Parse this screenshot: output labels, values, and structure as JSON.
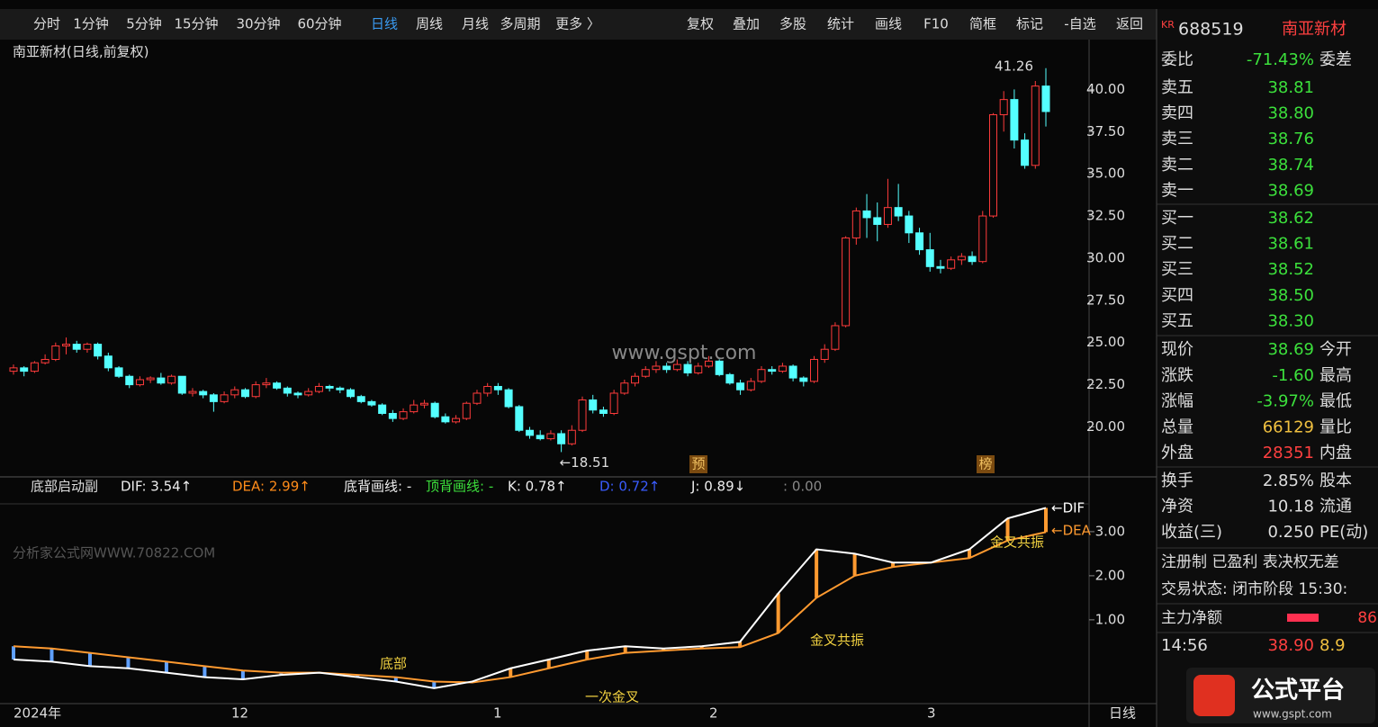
{
  "toolbar": {
    "left": [
      "分时",
      "1分钟",
      "5分钟",
      "15分钟",
      "30分钟",
      "60分钟",
      "日线",
      "周线",
      "月线",
      "多周期",
      "更多 〉"
    ],
    "right": [
      "复权",
      "叠加",
      "多股",
      "统计",
      "画线",
      "F10",
      "简框",
      "标记",
      "-自选",
      "返回"
    ]
  },
  "chart": {
    "type": "candlestick",
    "title": "南亚新材(日线,前复权)",
    "candles": [
      [
        23.3,
        23.7,
        23.1,
        23.5
      ],
      [
        23.5,
        23.6,
        23.0,
        23.3
      ],
      [
        23.3,
        23.9,
        23.2,
        23.8
      ],
      [
        23.8,
        24.3,
        23.7,
        24.0
      ],
      [
        24.0,
        25.0,
        23.9,
        24.8
      ],
      [
        24.8,
        25.3,
        24.3,
        24.9
      ],
      [
        24.9,
        25.1,
        24.4,
        24.6
      ],
      [
        24.6,
        25.0,
        24.4,
        24.9
      ],
      [
        24.9,
        25.0,
        24.0,
        24.2
      ],
      [
        24.2,
        24.4,
        23.3,
        23.5
      ],
      [
        23.5,
        23.6,
        22.9,
        23.0
      ],
      [
        23.0,
        23.1,
        22.3,
        22.5
      ],
      [
        22.5,
        23.0,
        22.4,
        22.8
      ],
      [
        22.8,
        23.0,
        22.6,
        22.9
      ],
      [
        22.9,
        23.2,
        22.5,
        22.6
      ],
      [
        22.6,
        23.1,
        22.5,
        23.0
      ],
      [
        23.0,
        23.0,
        21.9,
        22.0
      ],
      [
        22.0,
        22.3,
        21.8,
        22.1
      ],
      [
        22.1,
        22.2,
        21.7,
        21.9
      ],
      [
        21.9,
        22.0,
        20.9,
        21.5
      ],
      [
        21.5,
        22.1,
        21.4,
        21.9
      ],
      [
        21.9,
        22.4,
        21.7,
        22.2
      ],
      [
        22.2,
        22.3,
        21.7,
        21.8
      ],
      [
        21.8,
        22.7,
        21.7,
        22.5
      ],
      [
        22.5,
        22.9,
        22.3,
        22.6
      ],
      [
        22.6,
        22.7,
        22.2,
        22.3
      ],
      [
        22.3,
        22.4,
        21.8,
        22.0
      ],
      [
        22.0,
        22.1,
        21.7,
        21.9
      ],
      [
        21.9,
        22.3,
        21.8,
        22.1
      ],
      [
        22.1,
        22.6,
        22.0,
        22.4
      ],
      [
        22.4,
        22.5,
        22.1,
        22.3
      ],
      [
        22.3,
        22.4,
        22.0,
        22.2
      ],
      [
        22.2,
        22.3,
        21.7,
        21.8
      ],
      [
        21.8,
        21.9,
        21.4,
        21.5
      ],
      [
        21.5,
        21.6,
        21.2,
        21.3
      ],
      [
        21.3,
        21.4,
        20.7,
        20.8
      ],
      [
        20.8,
        21.0,
        20.3,
        20.5
      ],
      [
        20.5,
        21.1,
        20.4,
        20.9
      ],
      [
        20.9,
        21.6,
        20.8,
        21.3
      ],
      [
        21.3,
        21.6,
        21.1,
        21.4
      ],
      [
        21.4,
        21.5,
        20.5,
        20.6
      ],
      [
        20.6,
        20.8,
        20.2,
        20.3
      ],
      [
        20.3,
        20.7,
        20.2,
        20.5
      ],
      [
        20.5,
        21.5,
        20.4,
        21.4
      ],
      [
        21.4,
        22.2,
        21.3,
        22.0
      ],
      [
        22.0,
        22.6,
        21.8,
        22.4
      ],
      [
        22.4,
        22.6,
        21.9,
        22.2
      ],
      [
        22.2,
        22.3,
        21.1,
        21.2
      ],
      [
        21.2,
        21.3,
        19.7,
        19.8
      ],
      [
        19.8,
        20.0,
        19.3,
        19.5
      ],
      [
        19.5,
        19.8,
        19.2,
        19.3
      ],
      [
        19.3,
        19.8,
        19.2,
        19.6
      ],
      [
        19.6,
        19.8,
        18.51,
        19.0
      ],
      [
        19.0,
        20.1,
        18.9,
        19.8
      ],
      [
        19.8,
        21.8,
        19.7,
        21.6
      ],
      [
        21.6,
        21.9,
        20.8,
        21.0
      ],
      [
        21.0,
        21.2,
        20.6,
        20.8
      ],
      [
        20.8,
        22.2,
        20.7,
        22.0
      ],
      [
        22.0,
        22.8,
        21.9,
        22.6
      ],
      [
        22.6,
        23.2,
        22.4,
        23.0
      ],
      [
        23.0,
        23.6,
        22.9,
        23.4
      ],
      [
        23.4,
        23.9,
        23.2,
        23.6
      ],
      [
        23.6,
        23.8,
        23.2,
        23.4
      ],
      [
        23.4,
        24.0,
        23.3,
        23.7
      ],
      [
        23.7,
        23.9,
        23.0,
        23.2
      ],
      [
        23.2,
        23.8,
        23.1,
        23.6
      ],
      [
        23.6,
        24.2,
        23.5,
        23.9
      ],
      [
        23.9,
        24.0,
        23.0,
        23.1
      ],
      [
        23.1,
        23.2,
        22.5,
        22.6
      ],
      [
        22.6,
        22.8,
        21.9,
        22.2
      ],
      [
        22.2,
        22.9,
        22.1,
        22.7
      ],
      [
        22.7,
        23.6,
        22.6,
        23.4
      ],
      [
        23.4,
        23.6,
        23.1,
        23.3
      ],
      [
        23.3,
        23.8,
        23.2,
        23.6
      ],
      [
        23.6,
        23.7,
        22.7,
        22.9
      ],
      [
        22.9,
        23.0,
        22.4,
        22.7
      ],
      [
        22.7,
        24.2,
        22.6,
        24.0
      ],
      [
        24.0,
        24.9,
        23.8,
        24.6
      ],
      [
        24.6,
        26.2,
        24.5,
        26.0
      ],
      [
        26.0,
        31.3,
        25.9,
        31.2
      ],
      [
        31.2,
        33.0,
        30.8,
        32.8
      ],
      [
        32.8,
        33.8,
        31.2,
        32.4
      ],
      [
        32.4,
        33.3,
        31.0,
        32.0
      ],
      [
        32.0,
        34.7,
        31.8,
        33.0
      ],
      [
        33.0,
        34.4,
        32.2,
        32.5
      ],
      [
        32.5,
        32.8,
        30.9,
        31.5
      ],
      [
        31.5,
        31.8,
        30.2,
        30.5
      ],
      [
        30.5,
        31.5,
        29.2,
        29.5
      ],
      [
        29.5,
        29.9,
        29.1,
        29.4
      ],
      [
        29.4,
        30.1,
        29.3,
        29.9
      ],
      [
        29.9,
        30.3,
        29.6,
        30.1
      ],
      [
        30.1,
        30.4,
        29.6,
        29.8
      ],
      [
        29.8,
        32.8,
        29.7,
        32.5
      ],
      [
        32.5,
        38.6,
        32.4,
        38.5
      ],
      [
        38.5,
        39.9,
        37.5,
        39.4
      ],
      [
        39.4,
        40.0,
        36.5,
        37.0
      ],
      [
        37.0,
        37.4,
        35.3,
        35.5
      ],
      [
        35.5,
        40.5,
        35.3,
        40.2
      ],
      [
        40.2,
        41.26,
        37.8,
        38.69
      ]
    ],
    "ylim": [
      17.2,
      42.9
    ],
    "yticks": [
      {
        "value": 20,
        "label": "20.00"
      },
      {
        "value": 22.5,
        "label": "22.50"
      },
      {
        "value": 25,
        "label": "25.00"
      },
      {
        "value": 27.5,
        "label": "27.50"
      },
      {
        "value": 30,
        "label": "30.00"
      },
      {
        "value": 32.5,
        "label": "32.50"
      },
      {
        "value": 35,
        "label": "35.00"
      },
      {
        "value": 37.5,
        "label": "37.50"
      },
      {
        "value": 40,
        "label": "40.00"
      }
    ],
    "high_label": "41.26",
    "low_label": "←18.51",
    "markers": [
      "预",
      "榜"
    ],
    "watermark": "www.gspt.com",
    "xlabels": [
      "2024年",
      "12",
      "1",
      "2",
      "3"
    ],
    "period": "日线"
  },
  "indicator": {
    "name": "底部启动副",
    "legend": [
      "DIF: 3.54↑",
      "DEA: 2.99↑",
      "底背画线: -",
      "顶背画线: -",
      "K: 0.78↑",
      "D: 0.72↑",
      "J: 0.89↓",
      ": 0.00"
    ],
    "watermark": "分析家公式网WWW.70822.COM",
    "ylim": [
      -0.86,
      3.59
    ],
    "yticks": [
      {
        "value": 1,
        "label": "1.00"
      },
      {
        "value": 2,
        "label": "2.00"
      },
      {
        "value": 3,
        "label": "3.00"
      }
    ],
    "dif": [
      0.1,
      0.05,
      -0.05,
      -0.1,
      -0.2,
      -0.3,
      -0.35,
      -0.25,
      -0.2,
      -0.3,
      -0.4,
      -0.55,
      -0.4,
      -0.1,
      0.1,
      0.3,
      0.4,
      0.35,
      0.4,
      0.5,
      1.6,
      2.6,
      2.5,
      2.3,
      2.3,
      2.6,
      3.3,
      3.54
    ],
    "dea": [
      0.4,
      0.35,
      0.25,
      0.15,
      0.05,
      -0.05,
      -0.15,
      -0.2,
      -0.2,
      -0.25,
      -0.3,
      -0.4,
      -0.42,
      -0.3,
      -0.1,
      0.1,
      0.25,
      0.3,
      0.35,
      0.38,
      0.7,
      1.5,
      2.0,
      2.2,
      2.3,
      2.4,
      2.8,
      2.99
    ],
    "annotations": [
      "底部",
      "一次金叉",
      "金叉共振",
      "金叉共振"
    ],
    "line_labels": [
      "←DIF",
      "←DEA"
    ]
  },
  "quote": {
    "market": "KR",
    "code": "688519",
    "name": "南亚新材",
    "ratio": [
      "委比",
      "-71.43%",
      "委差"
    ],
    "asks": [
      [
        "卖五",
        "38.81"
      ],
      [
        "卖四",
        "38.80"
      ],
      [
        "卖三",
        "38.76"
      ],
      [
        "卖二",
        "38.74"
      ],
      [
        "卖一",
        "38.69"
      ]
    ],
    "bids": [
      [
        "买一",
        "38.62"
      ],
      [
        "买二",
        "38.61"
      ],
      [
        "买三",
        "38.52"
      ],
      [
        "买四",
        "38.50"
      ],
      [
        "买五",
        "38.30"
      ]
    ],
    "stats": [
      [
        "现价",
        "38.69",
        "今开"
      ],
      [
        "涨跌",
        "-1.60",
        "最高"
      ],
      [
        "涨幅",
        "-3.97%",
        "最低"
      ],
      [
        "总量",
        "66129",
        "量比"
      ],
      [
        "外盘",
        "28351",
        "内盘"
      ],
      [
        "换手",
        "2.85%",
        "股本"
      ],
      [
        "净资",
        "10.18",
        "流通"
      ],
      [
        "收益(三)",
        "0.250",
        "PE(动)"
      ]
    ],
    "status": [
      "注册制 已盈利 表决权无差",
      "交易状态: 闭市阶段 15:30:"
    ],
    "flow": [
      "主力净额",
      "86"
    ],
    "ticks": [
      [
        "14:56",
        "38.90",
        "8.9"
      ]
    ]
  },
  "logo": [
    "公式平台",
    "www.gspt.com"
  ]
}
